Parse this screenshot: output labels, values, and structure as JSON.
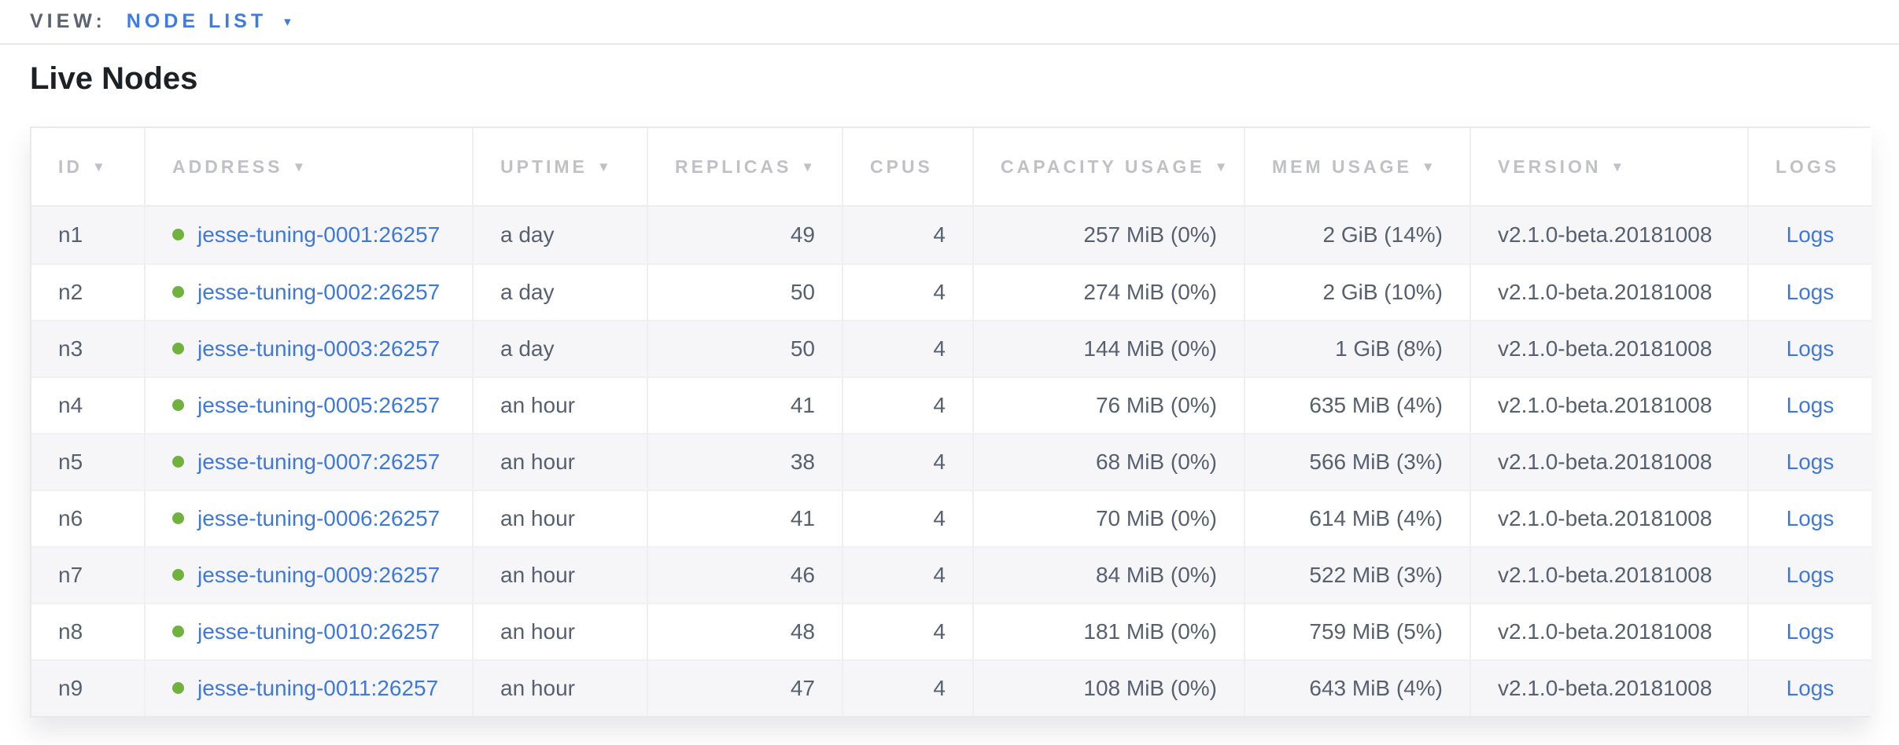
{
  "view_bar": {
    "label": "VIEW:",
    "selected": "NODE LIST"
  },
  "icons": {
    "chevron_down": "▾",
    "sort_desc": "▼",
    "live_status_dot": "green-circle"
  },
  "page": {
    "title": "Live Nodes"
  },
  "colors": {
    "accent_blue": "#3d7ce2",
    "link_blue": "#3f78dd",
    "live_green": "#6fb33e",
    "header_gray": "#c0c1c6",
    "body_text": "#57606f"
  },
  "table": {
    "logs_label": "Logs",
    "columns": [
      {
        "key": "id",
        "label": "ID",
        "sortable": true
      },
      {
        "key": "address",
        "label": "ADDRESS",
        "sortable": true
      },
      {
        "key": "uptime",
        "label": "UPTIME",
        "sortable": true
      },
      {
        "key": "replicas",
        "label": "REPLICAS",
        "sortable": true
      },
      {
        "key": "cpus",
        "label": "CPUS",
        "sortable": false
      },
      {
        "key": "capacity",
        "label": "CAPACITY USAGE",
        "sortable": true
      },
      {
        "key": "mem",
        "label": "MEM USAGE",
        "sortable": true
      },
      {
        "key": "version",
        "label": "VERSION",
        "sortable": true
      },
      {
        "key": "logs",
        "label": "LOGS",
        "sortable": false
      }
    ],
    "rows": [
      {
        "id": "n1",
        "status": "live",
        "address": "jesse-tuning-0001:26257",
        "uptime": "a day",
        "replicas": "49",
        "cpus": "4",
        "capacity": "257 MiB (0%)",
        "mem": "2 GiB (14%)",
        "version": "v2.1.0-beta.20181008"
      },
      {
        "id": "n2",
        "status": "live",
        "address": "jesse-tuning-0002:26257",
        "uptime": "a day",
        "replicas": "50",
        "cpus": "4",
        "capacity": "274 MiB (0%)",
        "mem": "2 GiB (10%)",
        "version": "v2.1.0-beta.20181008"
      },
      {
        "id": "n3",
        "status": "live",
        "address": "jesse-tuning-0003:26257",
        "uptime": "a day",
        "replicas": "50",
        "cpus": "4",
        "capacity": "144 MiB (0%)",
        "mem": "1 GiB (8%)",
        "version": "v2.1.0-beta.20181008"
      },
      {
        "id": "n4",
        "status": "live",
        "address": "jesse-tuning-0005:26257",
        "uptime": "an hour",
        "replicas": "41",
        "cpus": "4",
        "capacity": "76 MiB (0%)",
        "mem": "635 MiB (4%)",
        "version": "v2.1.0-beta.20181008"
      },
      {
        "id": "n5",
        "status": "live",
        "address": "jesse-tuning-0007:26257",
        "uptime": "an hour",
        "replicas": "38",
        "cpus": "4",
        "capacity": "68 MiB (0%)",
        "mem": "566 MiB (3%)",
        "version": "v2.1.0-beta.20181008"
      },
      {
        "id": "n6",
        "status": "live",
        "address": "jesse-tuning-0006:26257",
        "uptime": "an hour",
        "replicas": "41",
        "cpus": "4",
        "capacity": "70 MiB (0%)",
        "mem": "614 MiB (4%)",
        "version": "v2.1.0-beta.20181008"
      },
      {
        "id": "n7",
        "status": "live",
        "address": "jesse-tuning-0009:26257",
        "uptime": "an hour",
        "replicas": "46",
        "cpus": "4",
        "capacity": "84 MiB (0%)",
        "mem": "522 MiB (3%)",
        "version": "v2.1.0-beta.20181008"
      },
      {
        "id": "n8",
        "status": "live",
        "address": "jesse-tuning-0010:26257",
        "uptime": "an hour",
        "replicas": "48",
        "cpus": "4",
        "capacity": "181 MiB (0%)",
        "mem": "759 MiB (5%)",
        "version": "v2.1.0-beta.20181008"
      },
      {
        "id": "n9",
        "status": "live",
        "address": "jesse-tuning-0011:26257",
        "uptime": "an hour",
        "replicas": "47",
        "cpus": "4",
        "capacity": "108 MiB (0%)",
        "mem": "643 MiB (4%)",
        "version": "v2.1.0-beta.20181008"
      }
    ]
  }
}
